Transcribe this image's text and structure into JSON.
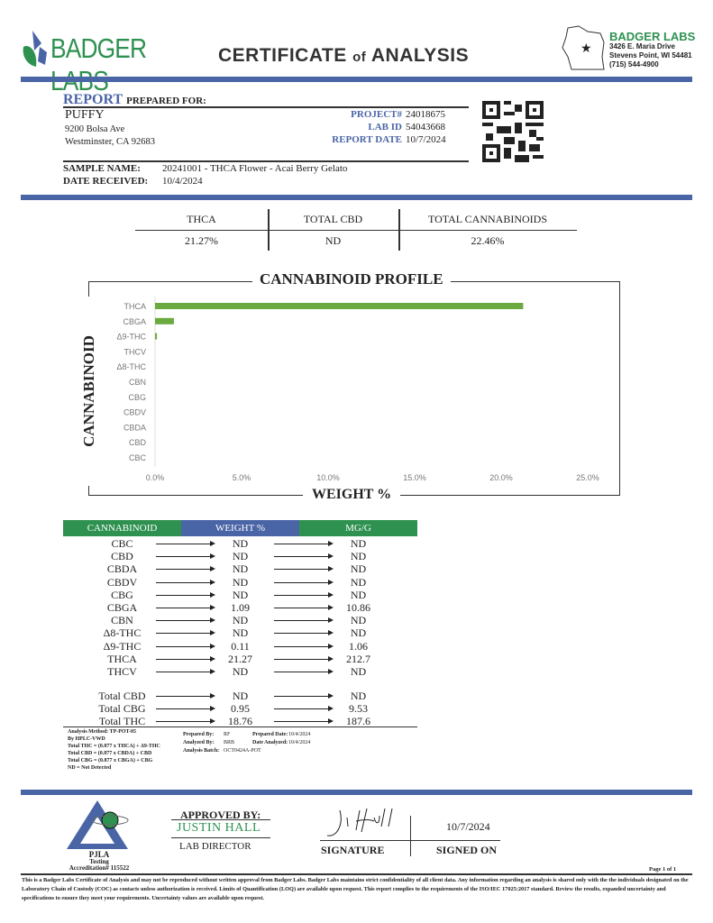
{
  "header": {
    "logo_text": "BADGER LABS",
    "title_main1": "CERTIFICATE",
    "title_of": "of",
    "title_main2": "ANALYSIS",
    "lab_name": "BADGER LABS",
    "address1": "3426 E. Maria Drive",
    "address2": "Stevens Point, WI 54481",
    "phone": "(715) 544-4900"
  },
  "report": {
    "report_word": "REPORT",
    "prepared_for": "PREPARED FOR:",
    "client": "PUFFY",
    "street": "9200 Bolsa Ave",
    "city": "Westminster, CA 92683",
    "project_label": "PROJECT#",
    "project": "24018675",
    "labid_label": "LAB ID",
    "labid": "54043668",
    "date_label": "REPORT DATE",
    "date": "10/7/2024",
    "sample_label": "SAMPLE NAME:",
    "sample": "20241001 - THCA Flower - Acai Berry Gelato",
    "received_label": "DATE RECEIVED:",
    "received": "10/4/2024"
  },
  "summary": {
    "headers": [
      "THCA",
      "TOTAL CBD",
      "TOTAL CANNABINOIDS"
    ],
    "values": [
      "21.27%",
      "ND",
      "22.46%"
    ]
  },
  "chart_data": {
    "type": "bar",
    "orientation": "horizontal",
    "title": "CANNABINOID PROFILE",
    "xlabel": "WEIGHT %",
    "ylabel": "CANNABINOID",
    "categories": [
      "THCA",
      "CBGA",
      "Δ9-THC",
      "THCV",
      "Δ8-THC",
      "CBN",
      "CBG",
      "CBDV",
      "CBDA",
      "CBD",
      "CBC"
    ],
    "values": [
      21.27,
      1.09,
      0.11,
      0,
      0,
      0,
      0,
      0,
      0,
      0,
      0
    ],
    "xlim": [
      0,
      25
    ],
    "xticks": [
      "0.0%",
      "5.0%",
      "10.0%",
      "15.0%",
      "20.0%",
      "25.0%"
    ],
    "color": "#6aaa3f"
  },
  "table": {
    "headers": [
      "CANNABINOID",
      "WEIGHT %",
      "MG/G"
    ],
    "header_colors": [
      "#2e9150",
      "#4a65a6",
      "#2e9150"
    ],
    "rows": [
      [
        "CBC",
        "ND",
        "ND"
      ],
      [
        "CBD",
        "ND",
        "ND"
      ],
      [
        "CBDA",
        "ND",
        "ND"
      ],
      [
        "CBDV",
        "ND",
        "ND"
      ],
      [
        "CBG",
        "ND",
        "ND"
      ],
      [
        "CBGA",
        "1.09",
        "10.86"
      ],
      [
        "CBN",
        "ND",
        "ND"
      ],
      [
        "Δ8-THC",
        "ND",
        "ND"
      ],
      [
        "Δ9-THC",
        "0.11",
        "1.06"
      ],
      [
        "THCA",
        "21.27",
        "212.7"
      ],
      [
        "THCV",
        "ND",
        "ND"
      ]
    ],
    "totals": [
      [
        "Total CBD",
        "ND",
        "ND"
      ],
      [
        "Total CBG",
        "0.95",
        "9.53"
      ],
      [
        "Total THC",
        "18.76",
        "187.6"
      ]
    ]
  },
  "notes": {
    "method": [
      "Analysis Method: TP-POT-05",
      "By HPLC-VWD",
      "Total THC = (0.877 x  THCA) + Δ9-THC",
      "Total CBD = (0.877 x  CBDA) + CBD",
      "Total CBG = (0.877 x  CBGA) + CBG",
      "ND = Not Detected"
    ],
    "prepared_by_label": "Prepared By:",
    "prepared_by": "RF",
    "prepared_date_label": "Prepared Date:",
    "prepared_date": "10/4/2024",
    "analyzed_by_label": "Analyzed By:",
    "analyzed_by": "BRB",
    "date_analyzed_label": "Date Analyzed:",
    "date_analyzed": "10/4/2024",
    "batch_label": "Analysis Batch:",
    "batch": "OCT0424A-POT"
  },
  "approval": {
    "approved_by": "APPROVED BY:",
    "name": "JUSTIN HALL",
    "role": "LAB DIRECTOR",
    "signature_label": "SIGNATURE",
    "signed_on_label": "SIGNED ON",
    "signed_on": "10/7/2024",
    "pjla": "PJLA",
    "testing": "Testing",
    "accreditation": "Accreditation# 115522"
  },
  "footer": {
    "page": "Page 1 of 1",
    "disclaimer": "This is a Badger Labs Certificate of Analysis and may not be reproduced without written approval from Badger Labs. Badger Labs maintains strict confidentiality of all client data. Any information regarding an analysis is shared only with the the individuals designated on the Laboratory Chain of Custody (COC) as contacts unless authorization is received. Limits of Quantification (LOQ) are available upon request. This report complies to the requirements of the ISO/IEC 17025:2017 standard. Review the results, expanded uncertainty and specifications to ensure they meet your requirements. Uncertainty values are available upon request."
  }
}
